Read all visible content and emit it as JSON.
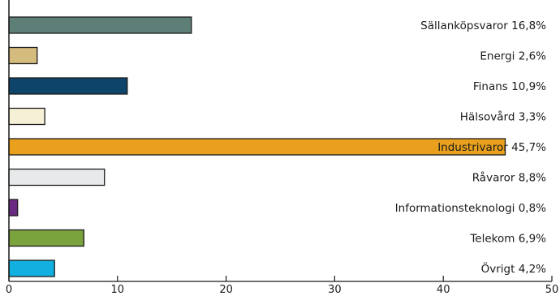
{
  "chart_data": {
    "type": "bar",
    "orientation": "horizontal",
    "categories": [
      "Sällanköpsvaror",
      "Energi",
      "Finans",
      "Hälsovård",
      "Industrivaror",
      "Råvaror",
      "Informationsteknologi",
      "Telekom",
      "Övrigt"
    ],
    "values": [
      16.8,
      2.6,
      10.9,
      3.3,
      45.7,
      8.8,
      0.8,
      6.9,
      4.2
    ],
    "labels": [
      "Sällanköpsvaror 16,8%",
      "Energi 2,6%",
      "Finans 10,9%",
      "Hälsovård 3,3%",
      "Industrivaror 45,7%",
      "Råvaror 8,8%",
      "Informationsteknologi 0,8%",
      "Telekom 6,9%",
      "Övrigt 4,2%"
    ],
    "colors": [
      "#5e7f78",
      "#d4bb7e",
      "#0e4469",
      "#f6f0d6",
      "#e9a11d",
      "#e8e9ea",
      "#6a2a82",
      "#7aa23d",
      "#12b0e0"
    ],
    "x_ticks": [
      "0",
      "10",
      "20",
      "30",
      "40",
      "50"
    ],
    "xlim": [
      0,
      50
    ],
    "grid": false,
    "legend": "none",
    "title": "",
    "xlabel": "",
    "ylabel": ""
  }
}
